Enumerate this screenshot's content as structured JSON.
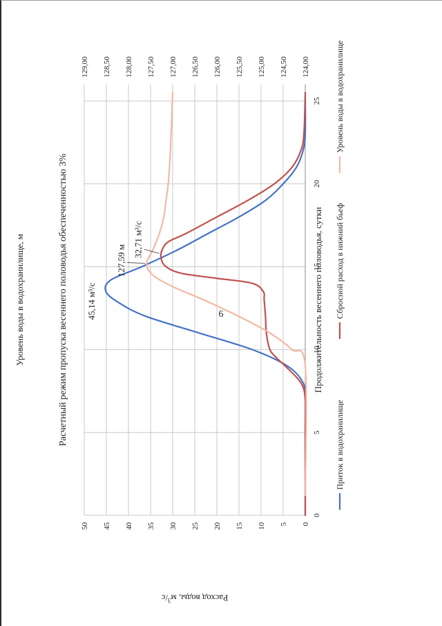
{
  "page": {
    "number": "6"
  },
  "chart_data": {
    "type": "line",
    "title": "Расчетный режим пропуска весеннего половодья обеспеченностью 3%",
    "xlabel": "Продолжительность весеннего  половодья, сутки",
    "ylabel": "Расход воды, м3/с",
    "y2label": "Уровень воды в водохранилище, м",
    "xlim": [
      0,
      26
    ],
    "ylim": [
      0,
      50
    ],
    "y2lim": [
      124.0,
      129.0
    ],
    "x_ticks": [
      "0",
      "5",
      "10",
      "15",
      "20",
      "25"
    ],
    "y_ticks": [
      "0",
      "5",
      "10",
      "15",
      "20",
      "25",
      "30",
      "35",
      "40",
      "45",
      "50"
    ],
    "y2_ticks": [
      "124,00",
      "124,50",
      "125,00",
      "125,50",
      "126,00",
      "126,50",
      "127,00",
      "127,50",
      "128,00",
      "128,50",
      "129,00"
    ],
    "grid": true,
    "legend_position": "bottom",
    "orientation": "rotated-90-ccw",
    "series": [
      {
        "name": "Приток в водохранилище",
        "axis": "left",
        "color": "#4472c4",
        "points": [
          [
            0,
            0
          ],
          [
            5,
            0
          ],
          [
            7,
            0
          ],
          [
            8,
            0.5
          ],
          [
            9,
            4
          ],
          [
            10,
            12
          ],
          [
            11,
            24
          ],
          [
            12,
            36
          ],
          [
            12.8,
            42
          ],
          [
            13.5,
            45.1
          ],
          [
            14.2,
            44
          ],
          [
            15,
            37
          ],
          [
            16,
            29
          ],
          [
            17,
            22
          ],
          [
            18,
            15
          ],
          [
            19,
            9
          ],
          [
            20,
            5
          ],
          [
            21,
            2
          ],
          [
            22,
            0.5
          ],
          [
            23,
            0
          ],
          [
            25.5,
            0
          ]
        ]
      },
      {
        "name": "Сбросной расход в нижний бьеф",
        "axis": "left",
        "color": "#c0504d",
        "points": [
          [
            0,
            0
          ],
          [
            5,
            0
          ],
          [
            7,
            0
          ],
          [
            8,
            1
          ],
          [
            9,
            4.5
          ],
          [
            9.5,
            6.5
          ],
          [
            10,
            8
          ],
          [
            11,
            8.8
          ],
          [
            12,
            9
          ],
          [
            13,
            9.3
          ],
          [
            13.5,
            9.5
          ],
          [
            14,
            12
          ],
          [
            14.3,
            20
          ],
          [
            14.6,
            28
          ],
          [
            15,
            31.5
          ],
          [
            15.5,
            32.6
          ],
          [
            16,
            32.4
          ],
          [
            16.5,
            31
          ],
          [
            17,
            27
          ],
          [
            18,
            20
          ],
          [
            19,
            13
          ],
          [
            20,
            7
          ],
          [
            21,
            3
          ],
          [
            22,
            1
          ],
          [
            23,
            0.3
          ],
          [
            25.5,
            0
          ]
        ]
      },
      {
        "name": "Уровень воды в водохранилище",
        "axis": "right",
        "color": "#f4b8a3",
        "points": [
          [
            1.2,
            124
          ],
          [
            9,
            124
          ],
          [
            10,
            124.3
          ],
          [
            11,
            124.8
          ],
          [
            12,
            125.5
          ],
          [
            13,
            126.3
          ],
          [
            13.8,
            127.0
          ],
          [
            14.5,
            127.45
          ],
          [
            15.2,
            127.59
          ],
          [
            16,
            127.45
          ],
          [
            17,
            127.3
          ],
          [
            18,
            127.2
          ],
          [
            19,
            127.15
          ],
          [
            20,
            127.1
          ],
          [
            22,
            127.05
          ],
          [
            25.5,
            127.0
          ]
        ]
      }
    ],
    "annotations": [
      {
        "text": "45,14 м³/с",
        "x": 13.5,
        "y": 45.14,
        "axis": "left"
      },
      {
        "text": "127,59 м",
        "x": 15.2,
        "y": 127.59,
        "axis": "right"
      },
      {
        "text": "32,71 м³/с",
        "x": 15.8,
        "y": 32.71,
        "axis": "left"
      }
    ]
  }
}
